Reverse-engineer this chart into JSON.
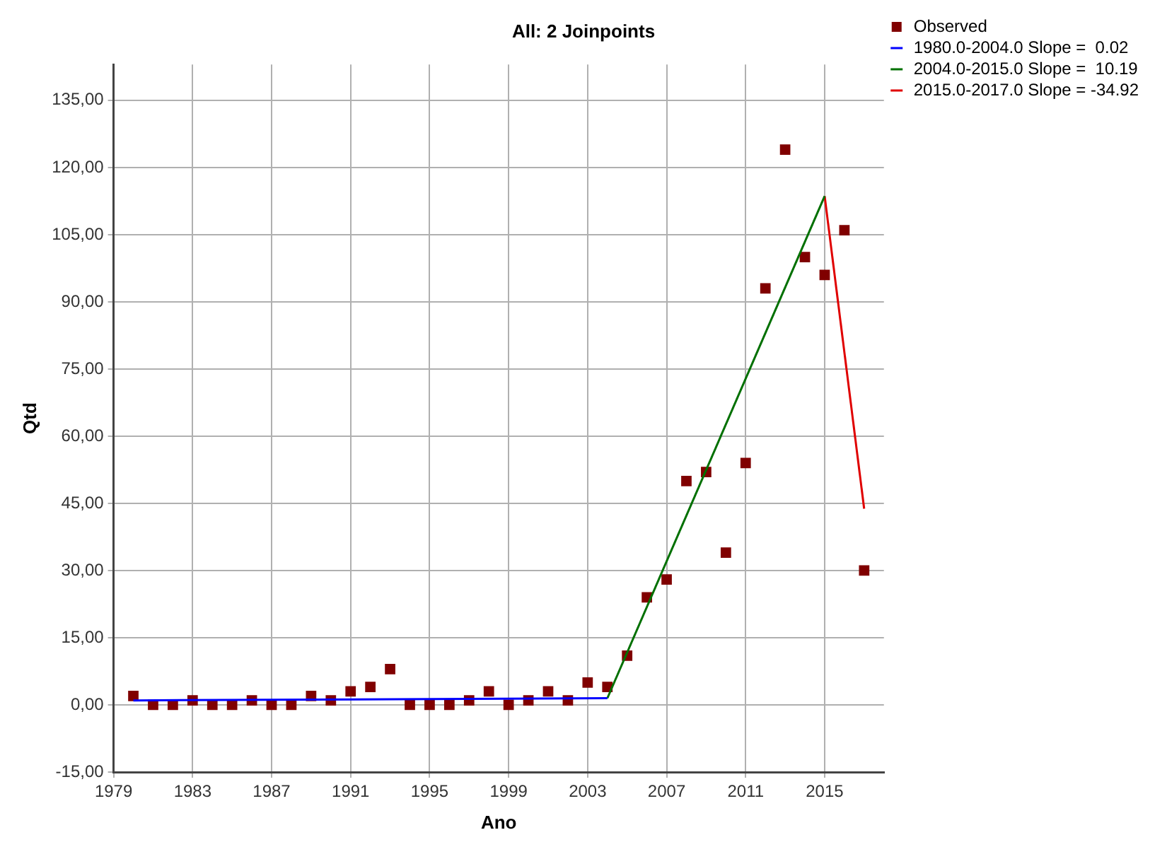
{
  "chart_data": {
    "type": "scatter",
    "title": "All: 2 Joinpoints",
    "xlabel": "Ano",
    "ylabel": "Qtd",
    "xlim": [
      1979,
      2018
    ],
    "xticks": [
      1979,
      1983,
      1987,
      1991,
      1995,
      1999,
      2003,
      2007,
      2011,
      2015
    ],
    "ylim": [
      -15,
      143
    ],
    "yticks": [
      {
        "value": -15,
        "label": "-15,00"
      },
      {
        "value": 0,
        "label": "0,00"
      },
      {
        "value": 15,
        "label": "15,00"
      },
      {
        "value": 30,
        "label": "30,00"
      },
      {
        "value": 45,
        "label": "45,00"
      },
      {
        "value": 60,
        "label": "60,00"
      },
      {
        "value": 75,
        "label": "75,00"
      },
      {
        "value": 90,
        "label": "90,00"
      },
      {
        "value": 105,
        "label": "105,00"
      },
      {
        "value": 120,
        "label": "120,00"
      },
      {
        "value": 135,
        "label": "135,00"
      }
    ],
    "grid": true,
    "legend": "top right",
    "line_style": "solid",
    "series": [
      {
        "name": "Observed",
        "marker": "square",
        "color": "#800000",
        "x": [
          1980,
          1981,
          1982,
          1983,
          1984,
          1985,
          1986,
          1987,
          1988,
          1989,
          1990,
          1991,
          1992,
          1993,
          1994,
          1995,
          1996,
          1997,
          1998,
          1999,
          2000,
          2001,
          2002,
          2003,
          2004,
          2005,
          2006,
          2007,
          2008,
          2009,
          2010,
          2011,
          2012,
          2013,
          2014,
          2015,
          2016,
          2017
        ],
        "values": [
          2,
          0,
          0,
          1,
          0,
          0,
          1,
          0,
          0,
          2,
          1,
          3,
          4,
          8,
          0,
          0,
          0,
          1,
          3,
          0,
          1,
          3,
          1,
          5,
          4,
          11,
          24,
          28,
          50,
          52,
          34,
          54,
          93,
          124,
          100,
          96,
          106,
          30
        ]
      },
      {
        "name": "1980.0-2004.0 Slope =  0.02",
        "type": "line",
        "marker": "none",
        "color": "#0000ff",
        "x": [
          1980,
          2004
        ],
        "values": [
          1.0,
          1.5
        ]
      },
      {
        "name": "2004.0-2015.0 Slope =  10.19",
        "type": "line",
        "marker": "none",
        "color": "#007000",
        "x": [
          2004,
          2015
        ],
        "values": [
          1.5,
          113.6
        ]
      },
      {
        "name": "2015.0-2017.0 Slope = -34.92",
        "type": "line",
        "marker": "none",
        "color": "#e00000",
        "x": [
          2015,
          2017
        ],
        "values": [
          113.6,
          43.8
        ]
      }
    ]
  }
}
